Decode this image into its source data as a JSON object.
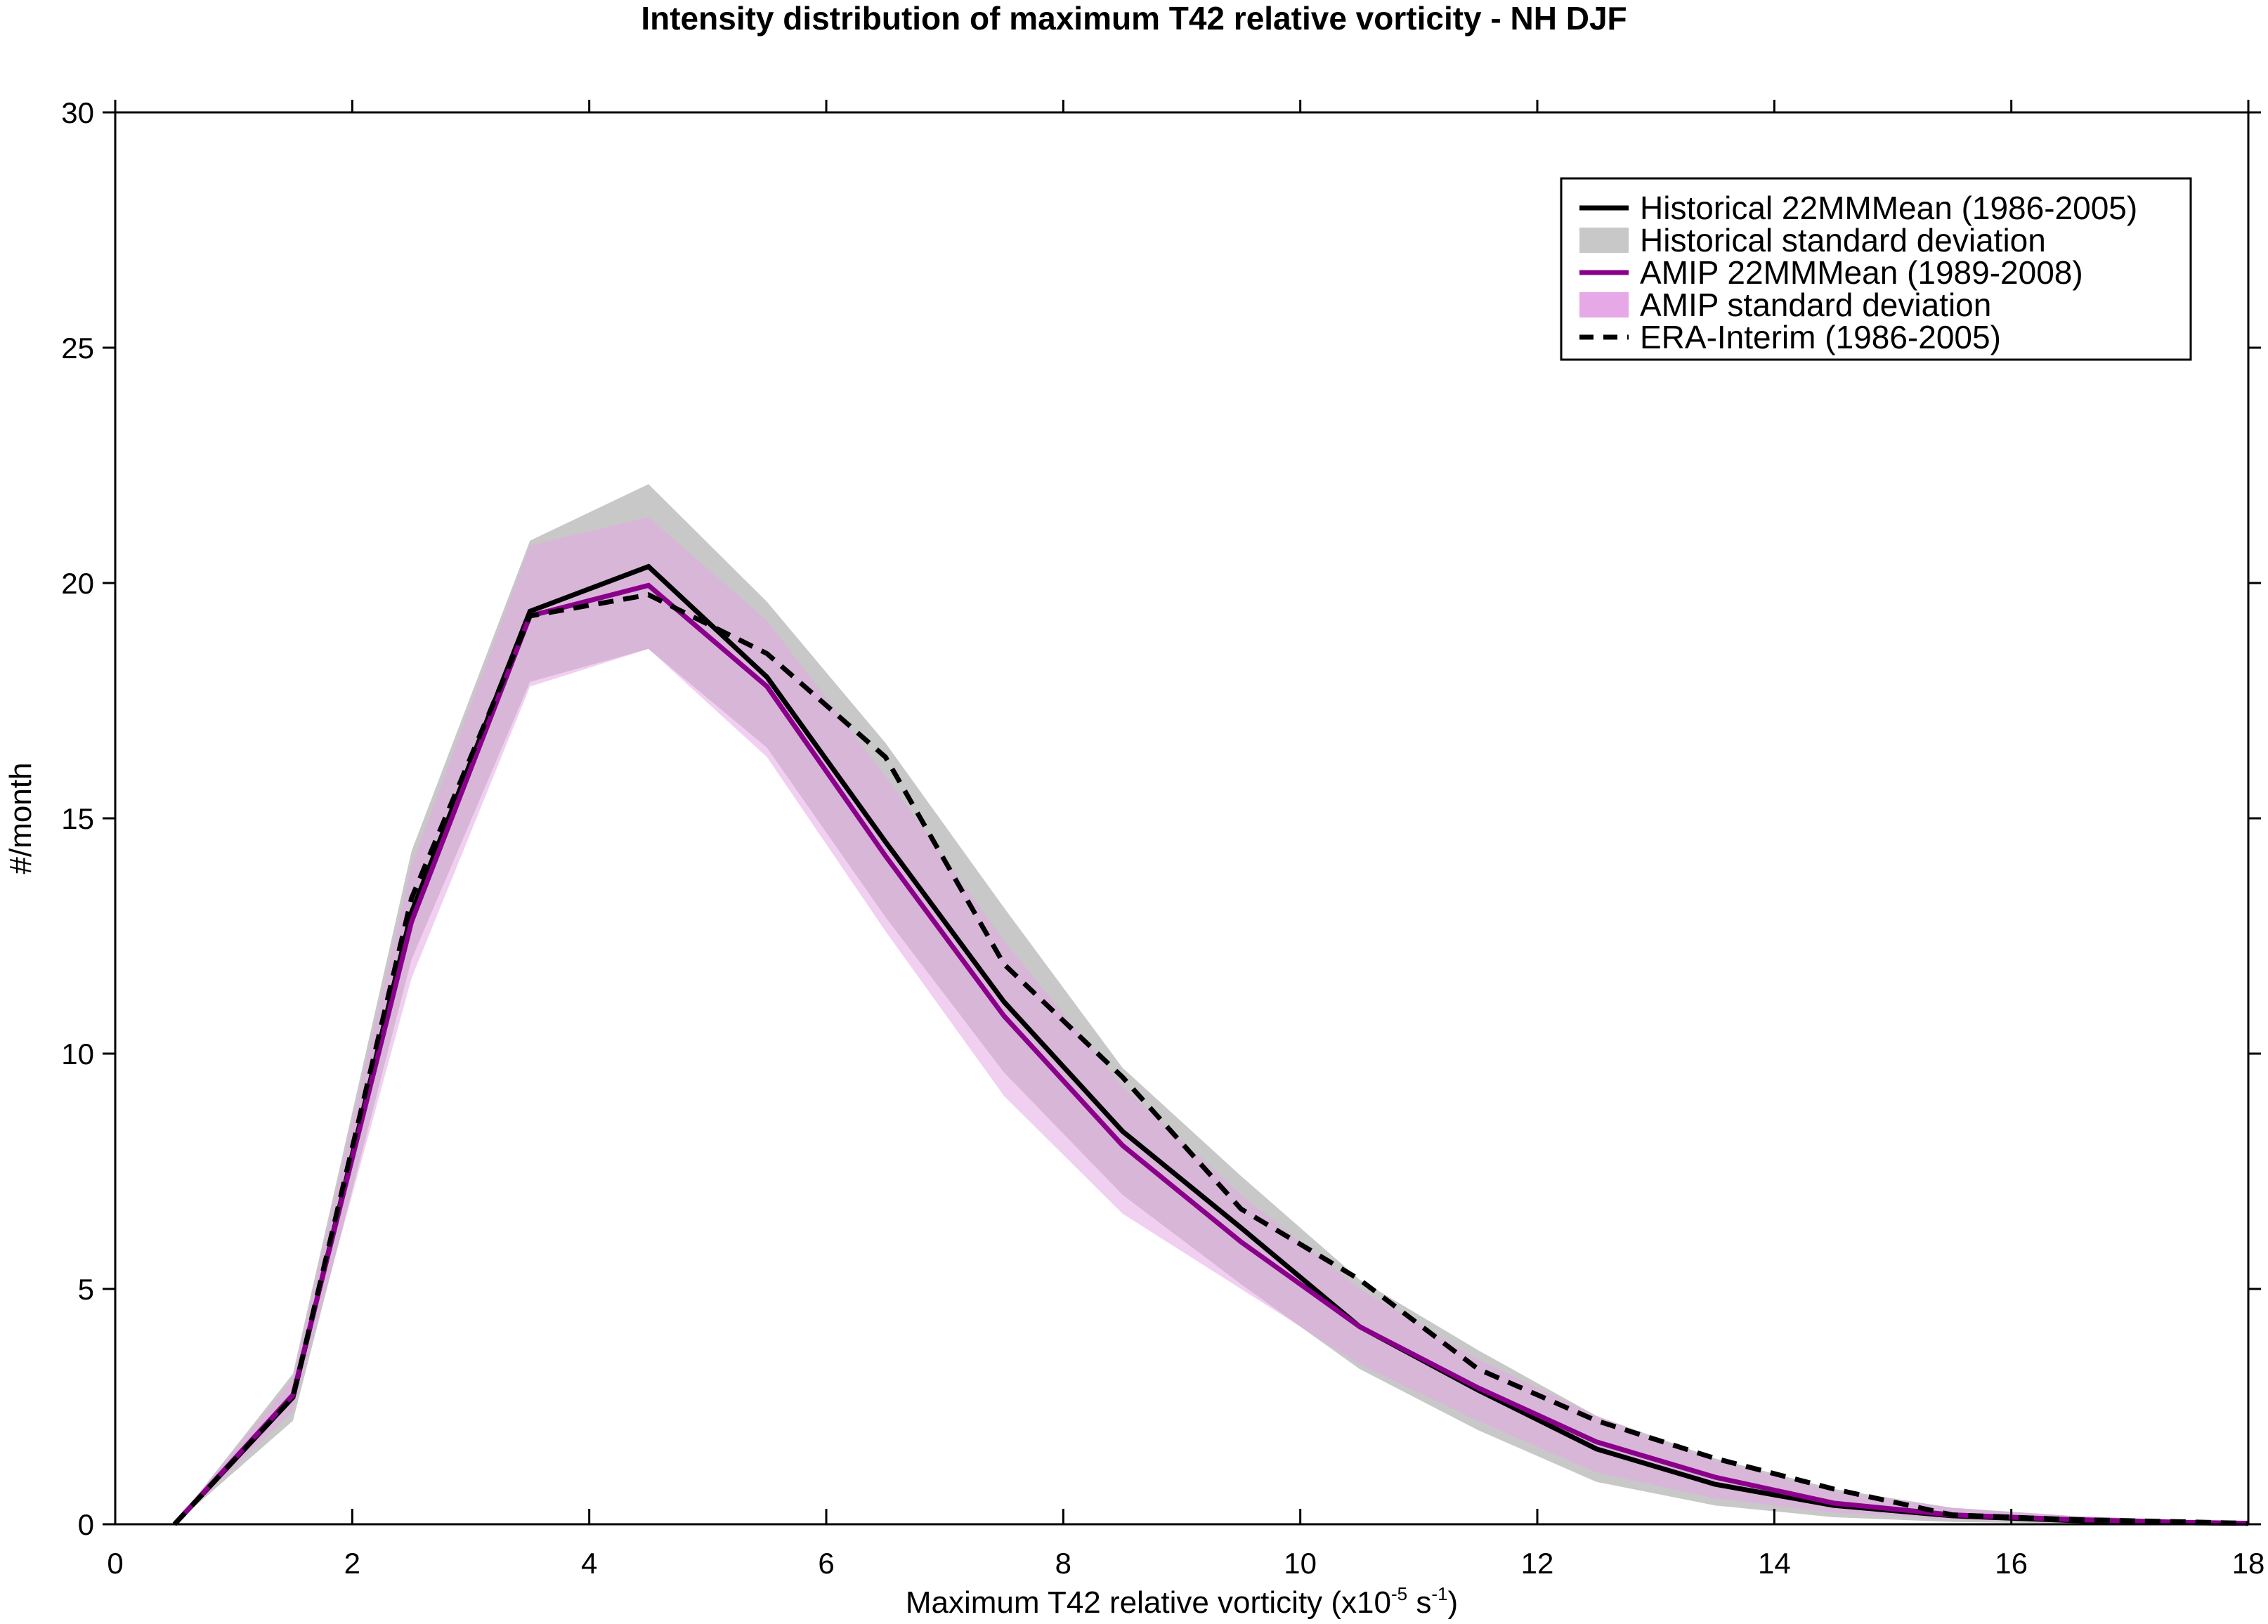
{
  "chart_data": {
    "type": "line",
    "title": "Intensity distribution of maximum T42 relative vorticity - NH DJF",
    "xlabel": {
      "prefix": "Maximum T42 relative vorticity (x10",
      "sup1": "-5",
      "mid": " s",
      "sup2": "-1",
      "suffix": ")"
    },
    "ylabel": "#/month",
    "xlim": [
      0,
      18
    ],
    "ylim": [
      0,
      30
    ],
    "xticks": [
      0,
      2,
      4,
      6,
      8,
      10,
      12,
      14,
      16,
      18
    ],
    "yticks": [
      0,
      5,
      10,
      15,
      20,
      25,
      30
    ],
    "xtick_labels": [
      "0",
      "2",
      "4",
      "6",
      "8",
      "10",
      "12",
      "14",
      "16",
      "18"
    ],
    "ytick_labels": [
      "0",
      "5",
      "10",
      "15",
      "20",
      "25",
      "30"
    ],
    "grid": false,
    "legend_position": "top-right",
    "x": [
      0.5,
      1.5,
      2.5,
      3.5,
      4.5,
      5.5,
      6.5,
      7.5,
      8.5,
      9.5,
      10.5,
      11.5,
      12.5,
      13.5,
      14.5,
      15.5,
      16.5,
      17.5,
      18
    ],
    "series": [
      {
        "name": "Historical 22MMMean (1986-2005)",
        "kind": "line",
        "color": "#000000",
        "dash": "solid",
        "values": [
          0,
          2.7,
          13.0,
          19.4,
          20.35,
          18.0,
          14.5,
          11.1,
          8.35,
          6.3,
          4.2,
          2.85,
          1.6,
          0.85,
          0.4,
          0.18,
          0.08,
          0.03,
          0.02
        ]
      },
      {
        "name": "Historical standard deviation",
        "kind": "band",
        "color": "#c8c8c8",
        "lower": [
          0,
          2.2,
          12.0,
          17.9,
          18.6,
          16.5,
          12.9,
          9.6,
          7.0,
          5.1,
          3.3,
          2.0,
          0.9,
          0.4,
          0.15,
          0.05,
          0.02,
          0.0,
          0.0
        ],
        "upper": [
          0,
          3.2,
          14.3,
          20.9,
          22.1,
          19.6,
          16.6,
          13.1,
          9.7,
          7.4,
          5.2,
          3.7,
          2.3,
          1.4,
          0.75,
          0.35,
          0.18,
          0.08,
          0.04
        ]
      },
      {
        "name": "AMIP 22MMMean (1989-2008)",
        "kind": "line",
        "color": "#8b008b",
        "dash": "solid",
        "values": [
          0,
          2.75,
          12.8,
          19.3,
          19.95,
          17.8,
          14.2,
          10.8,
          8.05,
          6.0,
          4.2,
          2.9,
          1.75,
          1.0,
          0.45,
          0.2,
          0.1,
          0.04,
          0.02
        ]
      },
      {
        "name": "AMIP standard deviation",
        "kind": "band",
        "color": "#e6a8e6",
        "lower": [
          0,
          2.4,
          11.6,
          17.8,
          18.6,
          16.3,
          12.6,
          9.1,
          6.6,
          5.0,
          3.4,
          2.2,
          1.1,
          0.55,
          0.25,
          0.1,
          0.04,
          0.01,
          0.0
        ],
        "upper": [
          0,
          3.1,
          14.0,
          20.8,
          21.4,
          19.2,
          15.9,
          12.4,
          9.3,
          7.0,
          5.0,
          3.5,
          2.3,
          1.35,
          0.7,
          0.35,
          0.18,
          0.07,
          0.04
        ]
      },
      {
        "name": "ERA-Interim (1986-2005)",
        "kind": "line",
        "color": "#000000",
        "dash": "dashed",
        "values": [
          0,
          2.7,
          13.3,
          19.3,
          19.75,
          18.5,
          16.3,
          11.9,
          9.5,
          6.7,
          5.2,
          3.3,
          2.2,
          1.4,
          0.75,
          0.2,
          0.1,
          0.05,
          0.02
        ]
      }
    ]
  }
}
